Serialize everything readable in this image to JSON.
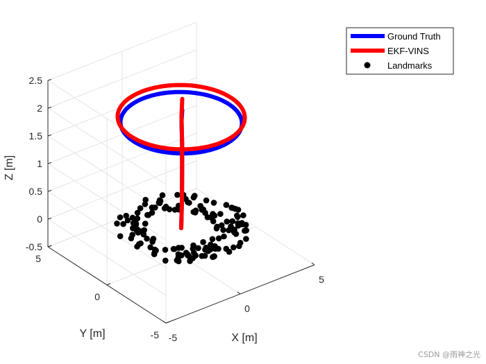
{
  "chart_data": {
    "type": "line",
    "projection": "3d",
    "grid": true,
    "legend_position": "top-right",
    "xlabel": "X [m]",
    "ylabel": "Y [m]",
    "zlabel": "Z [m]",
    "xlim": [
      -5,
      5
    ],
    "ylim": [
      -5,
      5
    ],
    "zlim": [
      -0.5,
      2.5
    ],
    "x_ticks": [
      "-5",
      "0",
      "5"
    ],
    "y_ticks": [
      "-5",
      "0",
      "5"
    ],
    "z_ticks": [
      "-0.5",
      "0",
      "0.5",
      "1",
      "1.5",
      "2",
      "2.5"
    ],
    "series": [
      {
        "name": "Ground Truth",
        "color": "#0000ff",
        "kind": "trajectory",
        "circle": {
          "center": [
            0,
            0
          ],
          "radius": 3.2,
          "z": 1.9
        },
        "x": [
          0,
          0.05,
          0.1,
          0.1,
          0.1,
          0.15,
          3.2,
          2.77,
          1.6,
          0,
          -1.6,
          -2.77,
          -3.2,
          -2.77,
          -1.6,
          0,
          1.6,
          2.77,
          3.2
        ],
        "y": [
          0,
          0,
          0.05,
          0.05,
          0.1,
          0.1,
          0,
          1.6,
          2.77,
          3.2,
          2.77,
          1.6,
          0,
          -1.6,
          -2.77,
          -3.2,
          -2.77,
          -1.6,
          0
        ],
        "z": [
          0,
          0.5,
          1.0,
          1.5,
          1.9,
          2.1,
          1.9,
          1.9,
          1.9,
          1.9,
          1.9,
          1.9,
          1.9,
          1.9,
          1.9,
          1.9,
          1.9,
          1.9,
          1.9
        ]
      },
      {
        "name": "EKF-VINS",
        "color": "#ff0000",
        "kind": "trajectory",
        "circle": {
          "center": [
            0,
            0
          ],
          "radius": 3.35,
          "z": 2.0
        },
        "x": [
          0,
          0.05,
          0.1,
          0.1,
          0.1,
          0.15,
          3.35,
          2.9,
          1.68,
          0,
          -1.68,
          -2.9,
          -3.35,
          -2.9,
          -1.68,
          0,
          1.68,
          2.9,
          3.35
        ],
        "y": [
          0,
          0,
          0.05,
          0.05,
          0.1,
          0.1,
          0,
          1.68,
          2.9,
          3.35,
          2.9,
          1.68,
          0,
          -1.68,
          -2.9,
          -3.35,
          -2.9,
          -1.68,
          0
        ],
        "z": [
          0,
          0.5,
          1.0,
          1.5,
          2.0,
          2.3,
          2.0,
          2.0,
          2.0,
          2.0,
          2.0,
          2.0,
          2.0,
          2.0,
          2.0,
          2.0,
          2.0,
          2.0,
          2.0
        ]
      },
      {
        "name": "Landmarks",
        "color": "#000000",
        "kind": "points",
        "z": 0,
        "ring": {
          "inner_radius": 1.8,
          "outer_radius": 3.6,
          "count": 150
        }
      }
    ]
  },
  "watermark": "CSDN @雨神之光"
}
